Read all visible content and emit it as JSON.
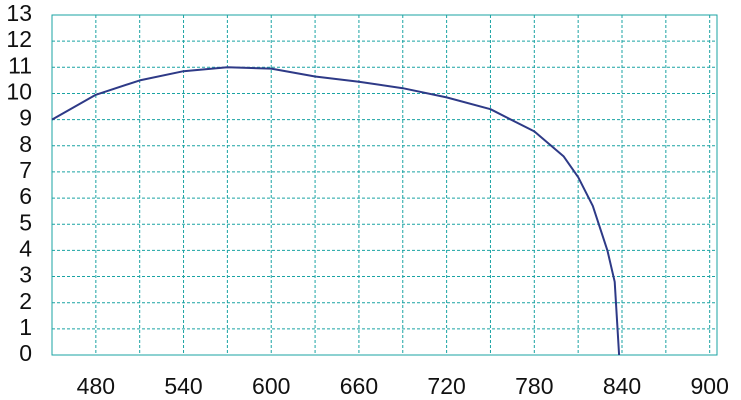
{
  "chart_data": {
    "type": "line",
    "x": [
      450,
      480,
      510,
      540,
      570,
      600,
      630,
      660,
      690,
      720,
      750,
      780,
      800,
      810,
      820,
      830,
      835,
      838
    ],
    "values": [
      9.0,
      9.95,
      10.5,
      10.85,
      11.0,
      10.95,
      10.65,
      10.45,
      10.2,
      9.85,
      9.4,
      8.55,
      7.6,
      6.8,
      5.7,
      4.0,
      2.8,
      0
    ],
    "color": "#2e3a87",
    "xlim": [
      450,
      905
    ],
    "xticks": [
      480,
      540,
      600,
      660,
      720,
      780,
      840,
      900
    ],
    "x_minor_grid": [
      450,
      510,
      570,
      630,
      690,
      750,
      810,
      870
    ],
    "ylim": [
      0,
      13
    ],
    "yticks": [
      0,
      1,
      2,
      3,
      4,
      5,
      6,
      7,
      8,
      9,
      10,
      11,
      12,
      13
    ],
    "grid": true,
    "grid_color": "#1aa3a3"
  }
}
